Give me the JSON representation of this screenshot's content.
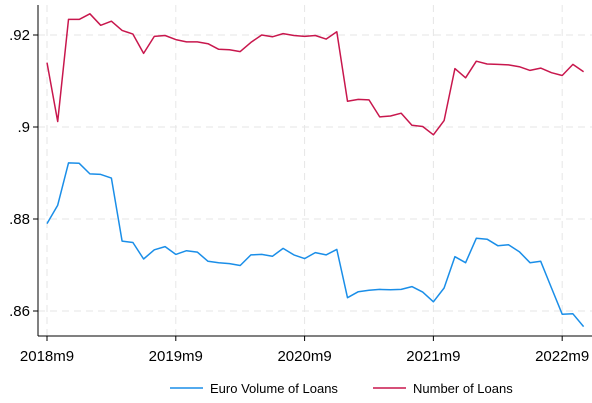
{
  "chart_data": {
    "type": "line",
    "grid": true,
    "legend_position": "bottom",
    "ylim": [
      0.855,
      0.927
    ],
    "yticks": [
      {
        "value": 0.86,
        "label": ".86"
      },
      {
        "value": 0.88,
        "label": ".88"
      },
      {
        "value": 0.9,
        "label": ".9"
      },
      {
        "value": 0.92,
        "label": ".92"
      }
    ],
    "xticks": [
      "2018m9",
      "2019m9",
      "2020m9",
      "2021m9",
      "2022m9"
    ],
    "x": [
      "2018m9",
      "2018m10",
      "2018m11",
      "2018m12",
      "2019m1",
      "2019m2",
      "2019m3",
      "2019m4",
      "2019m5",
      "2019m6",
      "2019m7",
      "2019m8",
      "2019m9",
      "2019m10",
      "2019m11",
      "2019m12",
      "2020m1",
      "2020m2",
      "2020m3",
      "2020m4",
      "2020m5",
      "2020m6",
      "2020m7",
      "2020m8",
      "2020m9",
      "2020m10",
      "2020m11",
      "2020m12",
      "2021m1",
      "2021m2",
      "2021m3",
      "2021m4",
      "2021m5",
      "2021m6",
      "2021m7",
      "2021m8",
      "2021m9",
      "2021m10",
      "2021m11",
      "2021m12",
      "2022m1",
      "2022m2",
      "2022m3",
      "2022m4",
      "2022m5",
      "2022m6",
      "2022m7",
      "2022m8",
      "2022m9",
      "2022m10",
      "2022m11"
    ],
    "series": [
      {
        "name": "Euro Volume of Loans",
        "color": "#1a8ee8",
        "values": [
          0.879,
          0.883,
          0.8922,
          0.8921,
          0.8898,
          0.8897,
          0.8889,
          0.8752,
          0.8749,
          0.8713,
          0.8733,
          0.874,
          0.8723,
          0.8731,
          0.8728,
          0.8708,
          0.8705,
          0.8703,
          0.8699,
          0.8722,
          0.8723,
          0.8719,
          0.8736,
          0.8722,
          0.8714,
          0.8727,
          0.8722,
          0.8734,
          0.8629,
          0.8642,
          0.8645,
          0.8647,
          0.8646,
          0.8647,
          0.8653,
          0.8641,
          0.862,
          0.865,
          0.8718,
          0.8705,
          0.8758,
          0.8756,
          0.8742,
          0.8744,
          0.8729,
          0.8705,
          0.8708,
          0.865,
          0.8593,
          0.8594,
          0.8566
        ]
      },
      {
        "name": "Number of Loans",
        "color": "#c8174d",
        "values": [
          0.914,
          0.9012,
          0.9234,
          0.9234,
          0.9246,
          0.9221,
          0.923,
          0.921,
          0.9202,
          0.916,
          0.9197,
          0.9199,
          0.919,
          0.9185,
          0.9185,
          0.9181,
          0.9169,
          0.9168,
          0.9164,
          0.9184,
          0.92,
          0.9196,
          0.9203,
          0.9199,
          0.9197,
          0.9199,
          0.9191,
          0.9207,
          0.9056,
          0.906,
          0.9059,
          0.9022,
          0.9024,
          0.903,
          0.9004,
          0.9001,
          0.8983,
          0.9014,
          0.9127,
          0.9107,
          0.9143,
          0.9137,
          0.9136,
          0.9135,
          0.9131,
          0.9123,
          0.9128,
          0.9118,
          0.9112,
          0.9136,
          0.912
        ]
      }
    ]
  }
}
